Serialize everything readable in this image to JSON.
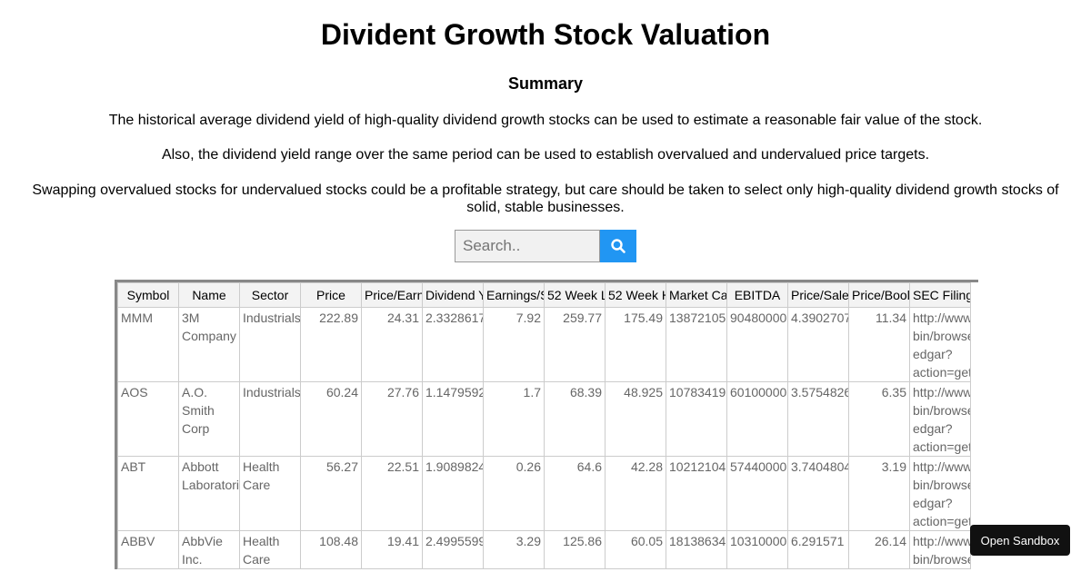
{
  "title": "Divident Growth Stock Valuation",
  "subtitle": "Summary",
  "paragraphs": [
    "The historical average dividend yield of high-quality dividend growth stocks can be used to estimate a reasonable fair value of the stock.",
    "Also, the dividend yield range over the same period can be used to establish overvalued and undervalued price targets.",
    "Swapping overvalued stocks for undervalued stocks could be a profitable strategy, but care should be taken to select only high-quality dividend growth stocks of solid, stable businesses."
  ],
  "search": {
    "placeholder": "Search..",
    "value": "",
    "icon": "search-icon",
    "button_color": "#2196F3"
  },
  "table": {
    "headers": [
      "Symbol",
      "Name",
      "Sector",
      "Price",
      "Price/Earn",
      "Dividend Y",
      "Earnings/S",
      "52 Week L",
      "52 Week H",
      "Market Ca",
      "EBITDA",
      "Price/Sale",
      "Price/Bool",
      "SEC Filings"
    ],
    "rows": [
      {
        "symbol": "MMM",
        "name": [
          "3M",
          "Company"
        ],
        "sector": [
          "Industrials"
        ],
        "price": "222.89",
        "pe": "24.31",
        "dy": "2.3328617",
        "eps": "7.92",
        "low": "259.77",
        "high": "175.49",
        "cap": "13872105",
        "ebitda": "90480000",
        "ps": "4.3902707",
        "pb": "11.34",
        "sec": [
          "http://www.",
          "bin/browse",
          "edgar?",
          "action=getc"
        ]
      },
      {
        "symbol": "AOS",
        "name": [
          "A.O.",
          "Smith",
          "Corp"
        ],
        "sector": [
          "Industrials"
        ],
        "price": "60.24",
        "pe": "27.76",
        "dy": "1.1479592",
        "eps": "1.7",
        "low": "68.39",
        "high": "48.925",
        "cap": "10783419",
        "ebitda": "60100000",
        "ps": "3.5754826",
        "pb": "6.35",
        "sec": [
          "http://www.",
          "bin/browse",
          "edgar?",
          "action=getc"
        ]
      },
      {
        "symbol": "ABT",
        "name": [
          "Abbott",
          "Laboratori"
        ],
        "sector": [
          "Health",
          "Care"
        ],
        "price": "56.27",
        "pe": "22.51",
        "dy": "1.9089824",
        "eps": "0.26",
        "low": "64.6",
        "high": "42.28",
        "cap": "10212104",
        "ebitda": "57440000",
        "ps": "3.7404804",
        "pb": "3.19",
        "sec": [
          "http://www.",
          "bin/browse",
          "edgar?",
          "action=getc"
        ]
      },
      {
        "symbol": "ABBV",
        "name": [
          "AbbVie",
          "Inc."
        ],
        "sector": [
          "Health",
          "Care"
        ],
        "price": "108.48",
        "pe": "19.41",
        "dy": "2.4995599",
        "eps": "3.29",
        "low": "125.86",
        "high": "60.05",
        "cap": "18138634",
        "ebitda": "10310000",
        "ps": "6.291571",
        "pb": "26.14",
        "sec": [
          "http://www.",
          "bin/browse"
        ]
      }
    ]
  },
  "sandbox_button": "Open Sandbox"
}
